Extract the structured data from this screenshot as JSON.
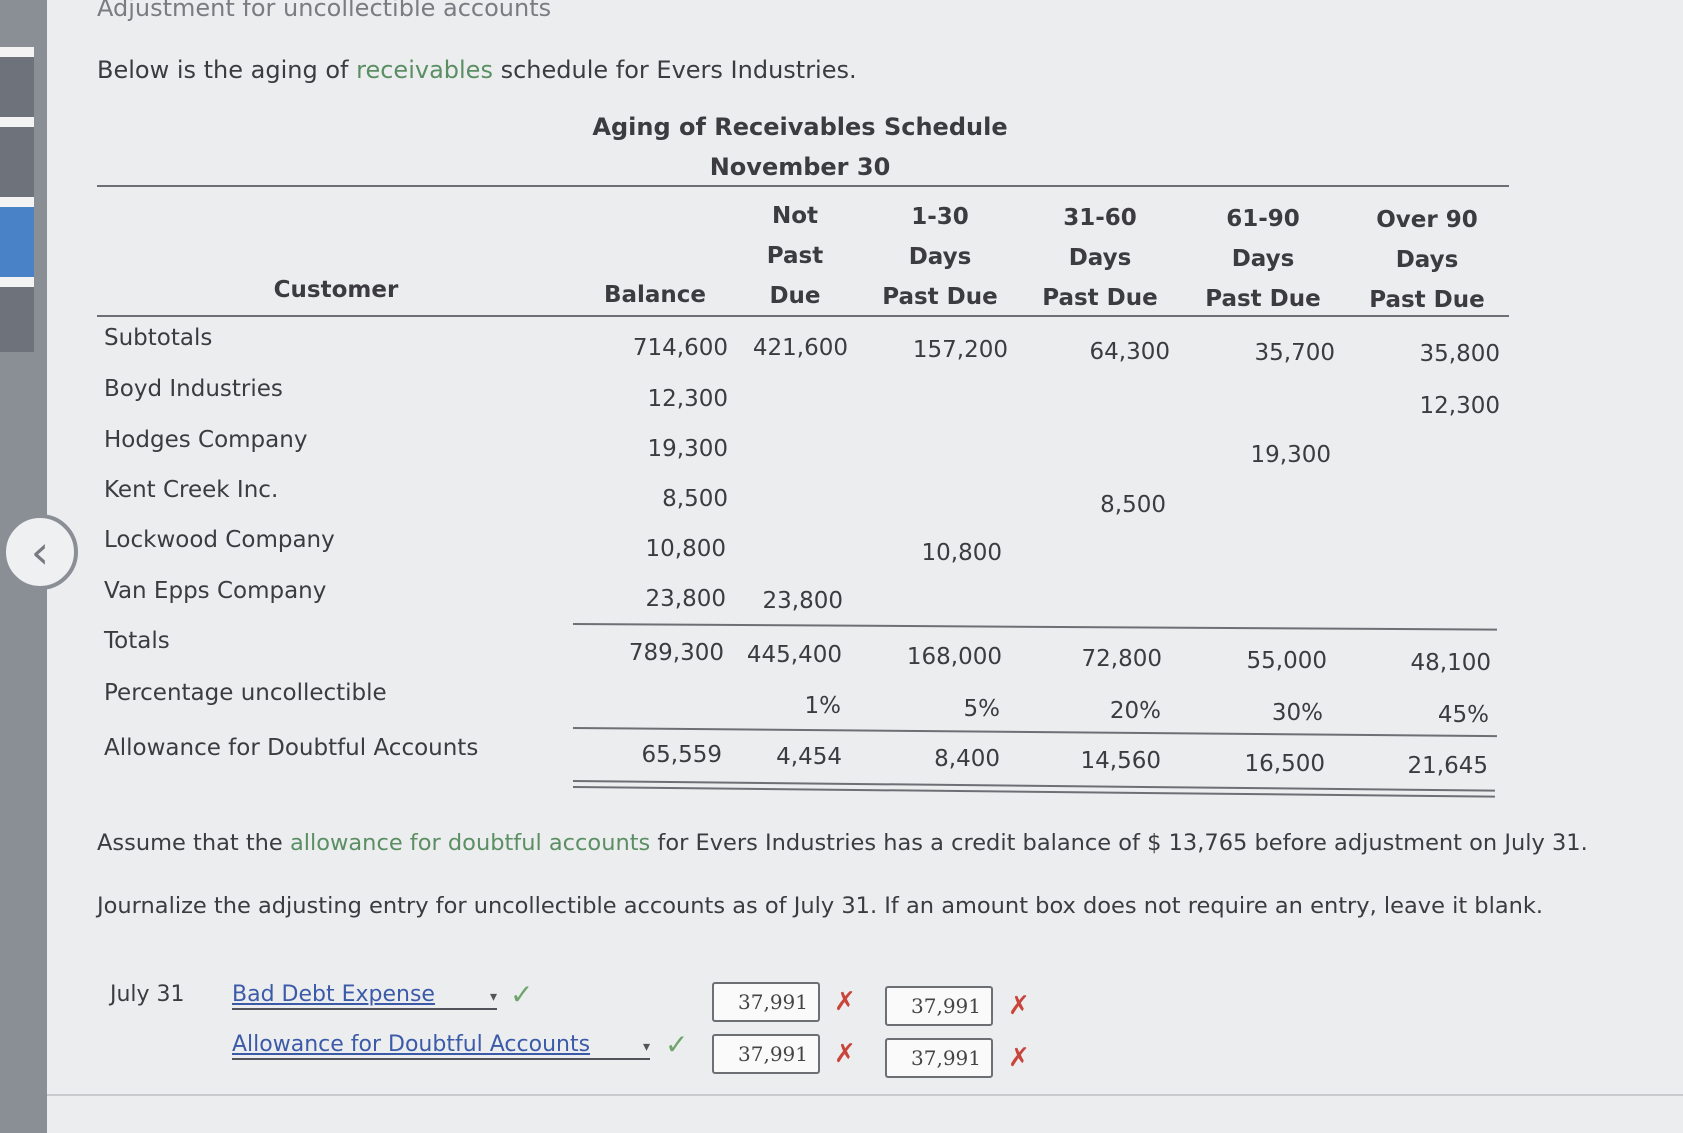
{
  "page": {
    "heading": "Adjustment for uncollectible accounts",
    "intro_before": "Below is the aging of",
    "intro_link": "receivables",
    "intro_after": "schedule for Evers Industries."
  },
  "schedule": {
    "title": "Aging of Receivables Schedule",
    "date": "November 30",
    "headers": {
      "customer": "Customer",
      "balance": "Balance",
      "not_past_due": [
        "Not",
        "Past",
        "Due"
      ],
      "d1_30": [
        "1-30",
        "Days",
        "Past Due"
      ],
      "d31_60": [
        "31-60",
        "Days",
        "Past Due"
      ],
      "d61_90": [
        "61-90",
        "Days",
        "Past Due"
      ],
      "over90": [
        "Over 90",
        "Days",
        "Past Due"
      ]
    },
    "rows": [
      {
        "label": "Subtotals",
        "balance": "714,600",
        "not_past_due": "421,600",
        "d1_30": "157,200",
        "d31_60": "64,300",
        "d61_90": "35,700",
        "over90": "35,800"
      },
      {
        "label": "Boyd Industries",
        "balance": "12,300",
        "over90": "12,300"
      },
      {
        "label": "Hodges Company",
        "balance": "19,300",
        "d61_90": "19,300"
      },
      {
        "label": "Kent Creek Inc.",
        "balance": "8,500",
        "d31_60": "8,500"
      },
      {
        "label": "Lockwood Company",
        "balance": "10,800",
        "d1_30": "10,800"
      },
      {
        "label": "Van Epps Company",
        "balance": "23,800",
        "not_past_due": "23,800"
      },
      {
        "label": "Totals",
        "balance": "789,300",
        "not_past_due": "445,400",
        "d1_30": "168,000",
        "d31_60": "72,800",
        "d61_90": "55,000",
        "over90": "48,100"
      },
      {
        "label": "Percentage uncollectible",
        "balance": "",
        "not_past_due": "1%",
        "d1_30": "5%",
        "d31_60": "20%",
        "d61_90": "30%",
        "over90": "45%"
      },
      {
        "label": "Allowance for Doubtful Accounts",
        "balance": "65,559",
        "not_past_due": "4,454",
        "d1_30": "8,400",
        "d31_60": "14,560",
        "d61_90": "16,500",
        "over90": "21,645"
      }
    ]
  },
  "question": {
    "assume_before": "Assume that the",
    "assume_link": "allowance for doubtful accounts",
    "assume_after": "for Evers Industries has a credit balance of $ 13,765 before adjustment on July 31.",
    "instruction": "Journalize the adjusting entry for uncollectible accounts as of July 31. If an amount box does not require an entry, leave it blank."
  },
  "journal": {
    "date": "July 31",
    "entries": [
      {
        "account": "Bad Debt Expense",
        "debit": "37,991",
        "credit": "37,991",
        "account_status": "correct",
        "debit_status": "incorrect",
        "credit_status": "incorrect"
      },
      {
        "account": "Allowance for Doubtful Accounts",
        "debit": "37,991",
        "credit": "37,991",
        "account_status": "correct",
        "debit_status": "incorrect",
        "credit_status": "incorrect"
      }
    ],
    "check_symbol": "✓",
    "x_symbol": "✗"
  },
  "colors": {
    "link": "#5b8f63",
    "check": "#6fa56c",
    "x_mark": "#c9453b",
    "select_text": "#3b5aa8"
  },
  "icons": {
    "prev": "chevron-left-icon"
  }
}
